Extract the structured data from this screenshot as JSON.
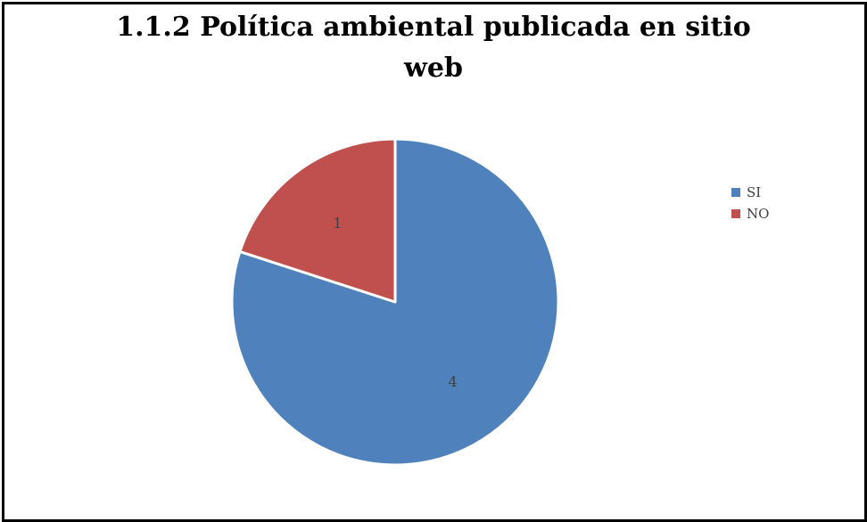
{
  "chart_data": {
    "type": "pie",
    "title_line1": "1.1.2  Política ambiental publicada en sitio",
    "title_line2": "web",
    "slices": [
      {
        "label": "SI",
        "value": 4,
        "color": "#4F81BD",
        "data_label": "4"
      },
      {
        "label": "NO",
        "value": 1,
        "color": "#C0504D",
        "data_label": "1"
      }
    ],
    "legend_position": "right"
  }
}
